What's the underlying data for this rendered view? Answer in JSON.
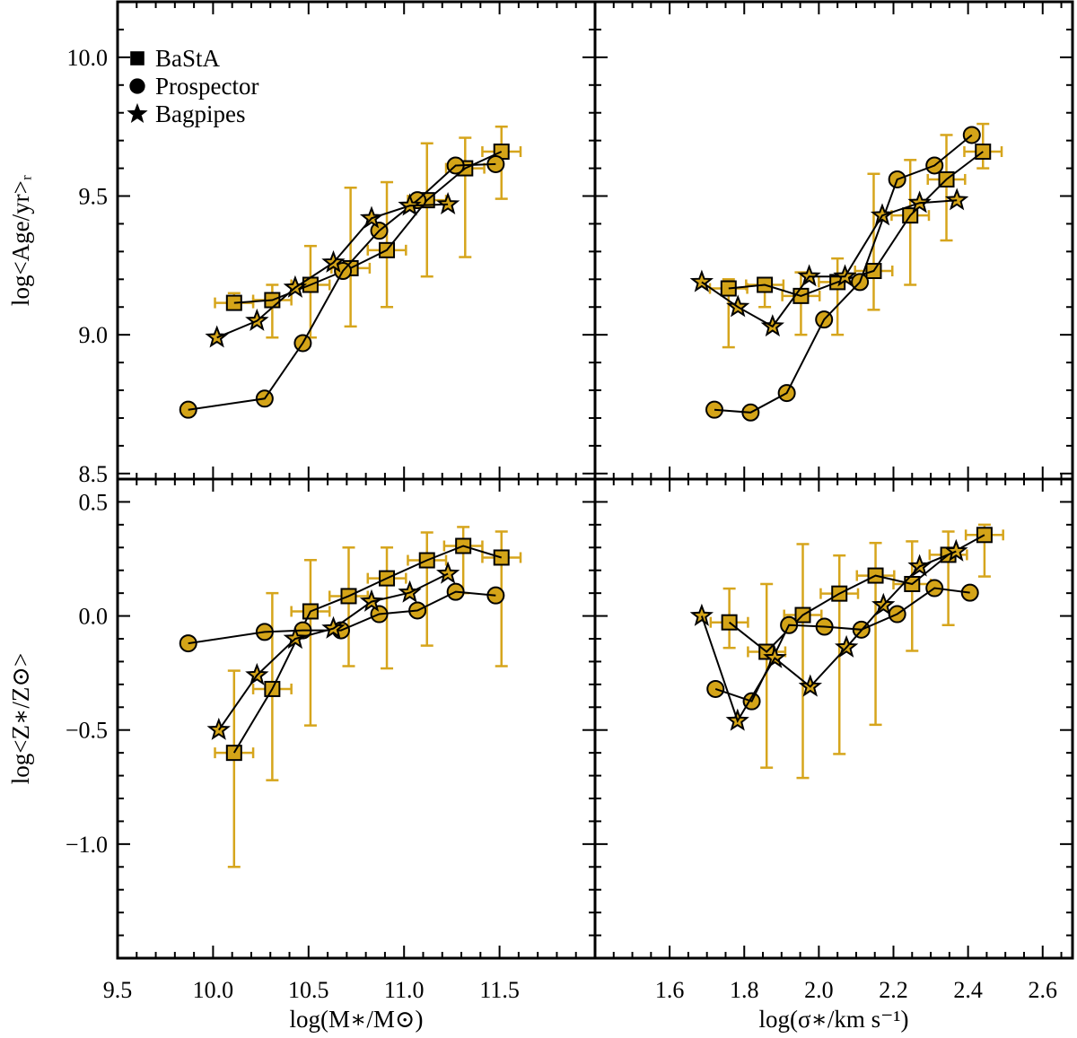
{
  "style": {
    "marker_fill": "#D4A418",
    "errorbar_color": "#D6A51C",
    "line_color": "#000000"
  },
  "legend": {
    "placement": "top-left of upper-left panel",
    "items": [
      {
        "label": "BaStA",
        "marker": "square"
      },
      {
        "label": "Prospector",
        "marker": "circle"
      },
      {
        "label": "Bagpipes",
        "marker": "star"
      }
    ]
  },
  "chart_data": [
    {
      "panel": "top-left",
      "type": "line",
      "xlabel": "",
      "ylabel": "log<Age/yr>ᵣ",
      "xlim": [
        9.5,
        12.0
      ],
      "ylim": [
        8.48,
        10.2
      ],
      "xticks": [],
      "yticks": [
        "10.0",
        "9.5",
        "9.0",
        "8.5"
      ],
      "series": [
        {
          "name": "BaStA",
          "marker": "square",
          "x": [
            10.11,
            10.31,
            10.51,
            10.72,
            10.91,
            11.12,
            11.32,
            11.51
          ],
          "y": [
            9.115,
            9.125,
            9.18,
            9.24,
            9.305,
            9.485,
            9.6,
            9.66
          ],
          "y_low": [
            9.1,
            8.99,
            8.99,
            9.03,
            9.1,
            9.21,
            9.28,
            9.49
          ],
          "y_high": [
            9.15,
            9.18,
            9.32,
            9.53,
            9.55,
            9.69,
            9.71,
            9.75
          ],
          "xerr": [
            0.1,
            0.1,
            0.1,
            0.1,
            0.1,
            0.1,
            0.1,
            0.1
          ]
        },
        {
          "name": "Prospector",
          "marker": "circle",
          "x": [
            9.87,
            10.27,
            10.47,
            10.68,
            10.87,
            11.07,
            11.27,
            11.48
          ],
          "y": [
            8.73,
            8.77,
            8.97,
            9.23,
            9.375,
            9.485,
            9.61,
            9.615
          ]
        },
        {
          "name": "Bagpipes",
          "marker": "star",
          "x": [
            10.02,
            10.23,
            10.43,
            10.63,
            10.83,
            11.03,
            11.23
          ],
          "y": [
            8.99,
            9.05,
            9.17,
            9.26,
            9.42,
            9.465,
            9.47
          ]
        }
      ]
    },
    {
      "panel": "top-right",
      "type": "line",
      "xlabel": "",
      "ylabel": "",
      "xlim": [
        1.4,
        2.68
      ],
      "ylim": [
        8.48,
        10.2
      ],
      "xticks": [],
      "yticks": [],
      "series": [
        {
          "name": "BaStA",
          "marker": "square",
          "x": [
            1.758,
            1.855,
            1.952,
            2.05,
            2.147,
            2.245,
            2.342,
            2.44
          ],
          "y": [
            9.167,
            9.18,
            9.14,
            9.19,
            9.23,
            9.43,
            9.56,
            9.66
          ],
          "y_low": [
            8.955,
            9.1,
            9.0,
            9.0,
            9.09,
            9.18,
            9.34,
            9.6
          ],
          "y_high": [
            9.2,
            9.205,
            9.225,
            9.275,
            9.58,
            9.63,
            9.72,
            9.76
          ],
          "xerr": [
            0.05,
            0.05,
            0.05,
            0.05,
            0.05,
            0.05,
            0.05,
            0.05
          ]
        },
        {
          "name": "Prospector",
          "marker": "circle",
          "x": [
            1.72,
            1.817,
            1.914,
            2.014,
            2.11,
            2.21,
            2.31,
            2.41
          ],
          "y": [
            8.73,
            8.72,
            8.79,
            9.055,
            9.19,
            9.56,
            9.61,
            9.72
          ]
        },
        {
          "name": "Bagpipes",
          "marker": "star",
          "x": [
            1.686,
            1.783,
            1.876,
            1.974,
            2.07,
            2.17,
            2.27,
            2.37
          ],
          "y": [
            9.19,
            9.1,
            9.03,
            9.21,
            9.21,
            9.43,
            9.475,
            9.485
          ]
        }
      ]
    },
    {
      "panel": "bottom-left",
      "type": "line",
      "xlabel": "log(M∗/M⊙)",
      "ylabel": "log<Z∗/Z⊙>",
      "xlim": [
        9.5,
        12.0
      ],
      "ylim": [
        -1.5,
        0.6
      ],
      "xticks": [
        "9.5",
        "10.0",
        "10.5",
        "11.0",
        "11.5"
      ],
      "yticks": [
        "0.5",
        "0.0",
        "−0.5",
        "−1.0"
      ],
      "series": [
        {
          "name": "BaStA",
          "marker": "square",
          "x": [
            10.11,
            10.31,
            10.51,
            10.71,
            10.91,
            11.12,
            11.31,
            11.51
          ],
          "y": [
            -0.6,
            -0.32,
            0.02,
            0.087,
            0.165,
            0.244,
            0.307,
            0.256
          ],
          "y_low": [
            -1.1,
            -0.72,
            -0.48,
            -0.22,
            -0.23,
            -0.13,
            0.1,
            -0.22
          ],
          "y_high": [
            -0.24,
            0.1,
            0.245,
            0.3,
            0.3,
            0.366,
            0.39,
            0.37
          ],
          "xerr": [
            0.1,
            0.1,
            0.1,
            0.1,
            0.1,
            0.1,
            0.1,
            0.1
          ]
        },
        {
          "name": "Prospector",
          "marker": "circle",
          "x": [
            9.87,
            10.27,
            10.47,
            10.67,
            10.87,
            11.07,
            11.27,
            11.48
          ],
          "y": [
            -0.12,
            -0.07,
            -0.063,
            -0.063,
            0.008,
            0.024,
            0.106,
            0.09
          ]
        },
        {
          "name": "Bagpipes",
          "marker": "star",
          "x": [
            10.03,
            10.23,
            10.43,
            10.63,
            10.83,
            11.03,
            11.23
          ],
          "y": [
            -0.5,
            -0.26,
            -0.1,
            -0.055,
            0.063,
            0.102,
            0.185
          ]
        }
      ]
    },
    {
      "panel": "bottom-right",
      "type": "line",
      "xlabel": "log(σ∗/km s⁻¹)",
      "ylabel": "",
      "xlim": [
        1.4,
        2.68
      ],
      "ylim": [
        -1.5,
        0.6
      ],
      "xticks": [
        "1.6",
        "1.8",
        "2.0",
        "2.2",
        "2.4",
        "2.6"
      ],
      "yticks": [],
      "series": [
        {
          "name": "BaStA",
          "marker": "square",
          "x": [
            1.76,
            1.86,
            1.957,
            2.055,
            2.152,
            2.25,
            2.347,
            2.444
          ],
          "y": [
            -0.028,
            -0.157,
            0.004,
            0.098,
            0.177,
            0.14,
            0.268,
            0.355
          ],
          "y_low": [
            -0.14,
            -0.665,
            -0.71,
            -0.605,
            -0.477,
            -0.153,
            -0.04,
            0.173
          ],
          "y_high": [
            0.12,
            0.14,
            0.315,
            0.265,
            0.32,
            0.327,
            0.37,
            0.4
          ],
          "xerr": [
            0.05,
            0.05,
            0.05,
            0.05,
            0.05,
            0.05,
            0.05,
            0.05
          ]
        },
        {
          "name": "Prospector",
          "marker": "circle",
          "x": [
            1.723,
            1.82,
            1.92,
            2.015,
            2.114,
            2.21,
            2.31,
            2.405
          ],
          "y": [
            -0.32,
            -0.374,
            -0.04,
            -0.047,
            -0.06,
            0.008,
            0.122,
            0.102
          ]
        },
        {
          "name": "Bagpipes",
          "marker": "star",
          "x": [
            1.686,
            1.782,
            1.882,
            1.977,
            2.074,
            2.173,
            2.27,
            2.368
          ],
          "y": [
            0.0,
            -0.46,
            -0.185,
            -0.31,
            -0.138,
            0.047,
            0.217,
            0.283
          ]
        }
      ]
    }
  ]
}
